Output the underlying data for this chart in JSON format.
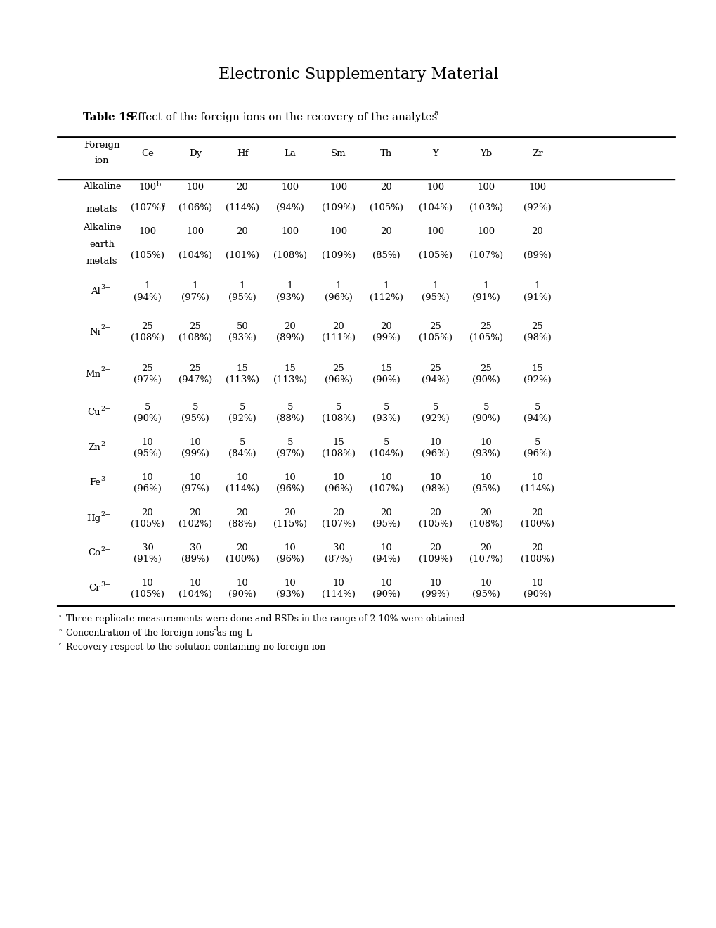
{
  "page_title": "Electronic Supplementary Material",
  "table_title_bold": "Table 1S",
  "table_title_rest": " Effect of the foreign ions on the recovery of the analytes ",
  "table_title_super": "a",
  "analytes": [
    "Ce",
    "Dy",
    "Hf",
    "La",
    "Sm",
    "Th",
    "Y",
    "Yb",
    "Zr"
  ],
  "rows": [
    {
      "label": [
        "Alkaline",
        "metals"
      ],
      "label_base": "Alkaline\nmetals",
      "label_super": "",
      "values": [
        [
          "100",
          "(107%)"
        ],
        [
          "100",
          "(106%)"
        ],
        [
          "20",
          "(114%)"
        ],
        [
          "100",
          "(94%)"
        ],
        [
          "100",
          "(109%)"
        ],
        [
          "20",
          "(105%)"
        ],
        [
          "100",
          "(104%)"
        ],
        [
          "100",
          "(103%)"
        ],
        [
          "100",
          "(92%)"
        ]
      ],
      "ce_super_conc": "b",
      "ce_super_pct": "c"
    },
    {
      "label": [
        "Alkaline",
        "earth",
        "metals"
      ],
      "label_base": "Alkaline\nearth\nmetals",
      "label_super": "",
      "values": [
        [
          "100",
          "(105%)"
        ],
        [
          "100",
          "(104%)"
        ],
        [
          "20",
          "(101%)"
        ],
        [
          "100",
          "(108%)"
        ],
        [
          "100",
          "(109%)"
        ],
        [
          "20",
          "(85%)"
        ],
        [
          "100",
          "(105%)"
        ],
        [
          "100",
          "(107%)"
        ],
        [
          "20",
          "(89%)"
        ]
      ],
      "ce_super_conc": "",
      "ce_super_pct": ""
    },
    {
      "label": [
        "Al"
      ],
      "label_base": "Al",
      "label_super": "3+",
      "values": [
        [
          "1",
          "(94%)"
        ],
        [
          "1",
          "(97%)"
        ],
        [
          "1",
          "(95%)"
        ],
        [
          "1",
          "(93%)"
        ],
        [
          "1",
          "(96%)"
        ],
        [
          "1",
          "(112%)"
        ],
        [
          "1",
          "(95%)"
        ],
        [
          "1",
          "(91%)"
        ],
        [
          "1",
          "(91%)"
        ]
      ],
      "ce_super_conc": "",
      "ce_super_pct": ""
    },
    {
      "label": [
        "Ni"
      ],
      "label_base": "Ni",
      "label_super": "2+",
      "values": [
        [
          "25",
          "(108%)"
        ],
        [
          "25",
          "(108%)"
        ],
        [
          "50",
          "(93%)"
        ],
        [
          "20",
          "(89%)"
        ],
        [
          "20",
          "(111%)"
        ],
        [
          "20",
          "(99%)"
        ],
        [
          "25",
          "(105%)"
        ],
        [
          "25",
          "(105%)"
        ],
        [
          "25",
          "(98%)"
        ]
      ],
      "ce_super_conc": "",
      "ce_super_pct": ""
    },
    {
      "label": [
        "Mn"
      ],
      "label_base": "Mn",
      "label_super": "2+",
      "values": [
        [
          "25",
          "(97%)"
        ],
        [
          "25",
          "(947%)"
        ],
        [
          "15",
          "(113%)"
        ],
        [
          "15",
          "(113%)"
        ],
        [
          "25",
          "(96%)"
        ],
        [
          "15",
          "(90%)"
        ],
        [
          "25",
          "(94%)"
        ],
        [
          "25",
          "(90%)"
        ],
        [
          "15",
          "(92%)"
        ]
      ],
      "ce_super_conc": "",
      "ce_super_pct": ""
    },
    {
      "label": [
        "Cu"
      ],
      "label_base": "Cu",
      "label_super": "2+",
      "values": [
        [
          "5",
          "(90%)"
        ],
        [
          "5",
          "(95%)"
        ],
        [
          "5",
          "(92%)"
        ],
        [
          "5",
          "(88%)"
        ],
        [
          "5",
          "(108%)"
        ],
        [
          "5",
          "(93%)"
        ],
        [
          "5",
          "(92%)"
        ],
        [
          "5",
          "(90%)"
        ],
        [
          "5",
          "(94%)"
        ]
      ],
      "ce_super_conc": "",
      "ce_super_pct": ""
    },
    {
      "label": [
        "Zn"
      ],
      "label_base": "Zn",
      "label_super": "2+",
      "values": [
        [
          "10",
          "(95%)"
        ],
        [
          "10",
          "(99%)"
        ],
        [
          "5",
          "(84%)"
        ],
        [
          "5",
          "(97%)"
        ],
        [
          "15",
          "(108%)"
        ],
        [
          "5",
          "(104%)"
        ],
        [
          "10",
          "(96%)"
        ],
        [
          "10",
          "(93%)"
        ],
        [
          "5",
          "(96%)"
        ]
      ],
      "ce_super_conc": "",
      "ce_super_pct": ""
    },
    {
      "label": [
        "Fe"
      ],
      "label_base": "Fe",
      "label_super": "3+",
      "values": [
        [
          "10",
          "(96%)"
        ],
        [
          "10",
          "(97%)"
        ],
        [
          "10",
          "(114%)"
        ],
        [
          "10",
          "(96%)"
        ],
        [
          "10",
          "(96%)"
        ],
        [
          "10",
          "(107%)"
        ],
        [
          "10",
          "(98%)"
        ],
        [
          "10",
          "(95%)"
        ],
        [
          "10",
          "(114%)"
        ]
      ],
      "ce_super_conc": "",
      "ce_super_pct": ""
    },
    {
      "label": [
        "Hg"
      ],
      "label_base": "Hg",
      "label_super": "2+",
      "values": [
        [
          "20",
          "(105%)"
        ],
        [
          "20",
          "(102%)"
        ],
        [
          "20",
          "(88%)"
        ],
        [
          "20",
          "(115%)"
        ],
        [
          "20",
          "(107%)"
        ],
        [
          "20",
          "(95%)"
        ],
        [
          "20",
          "(105%)"
        ],
        [
          "20",
          "(108%)"
        ],
        [
          "20",
          "(100%)"
        ]
      ],
      "ce_super_conc": "",
      "ce_super_pct": ""
    },
    {
      "label": [
        "Co"
      ],
      "label_base": "Co",
      "label_super": "2+",
      "values": [
        [
          "30",
          "(91%)"
        ],
        [
          "30",
          "(89%)"
        ],
        [
          "20",
          "(100%)"
        ],
        [
          "10",
          "(96%)"
        ],
        [
          "30",
          "(87%)"
        ],
        [
          "10",
          "(94%)"
        ],
        [
          "20",
          "(109%)"
        ],
        [
          "20",
          "(107%)"
        ],
        [
          "20",
          "(108%)"
        ]
      ],
      "ce_super_conc": "",
      "ce_super_pct": ""
    },
    {
      "label": [
        "Cr"
      ],
      "label_base": "Cr",
      "label_super": "3+",
      "values": [
        [
          "10",
          "(105%)"
        ],
        [
          "10",
          "(104%)"
        ],
        [
          "10",
          "(90%)"
        ],
        [
          "10",
          "(93%)"
        ],
        [
          "10",
          "(114%)"
        ],
        [
          "10",
          "(90%)"
        ],
        [
          "10",
          "(99%)"
        ],
        [
          "10",
          "(95%)"
        ],
        [
          "10",
          "(90%)"
        ]
      ],
      "ce_super_conc": "",
      "ce_super_pct": ""
    }
  ],
  "footnote_a": "Three replicate measurements were done and RSDs in the range of 2-10% were obtained",
  "footnote_b": "Concentration of the foreign ions as mg L",
  "footnote_b_super": "-1",
  "footnote_c": "Recovery respect to the solution containing no foreign ion",
  "bg_color": "#ffffff",
  "text_color": "#000000"
}
